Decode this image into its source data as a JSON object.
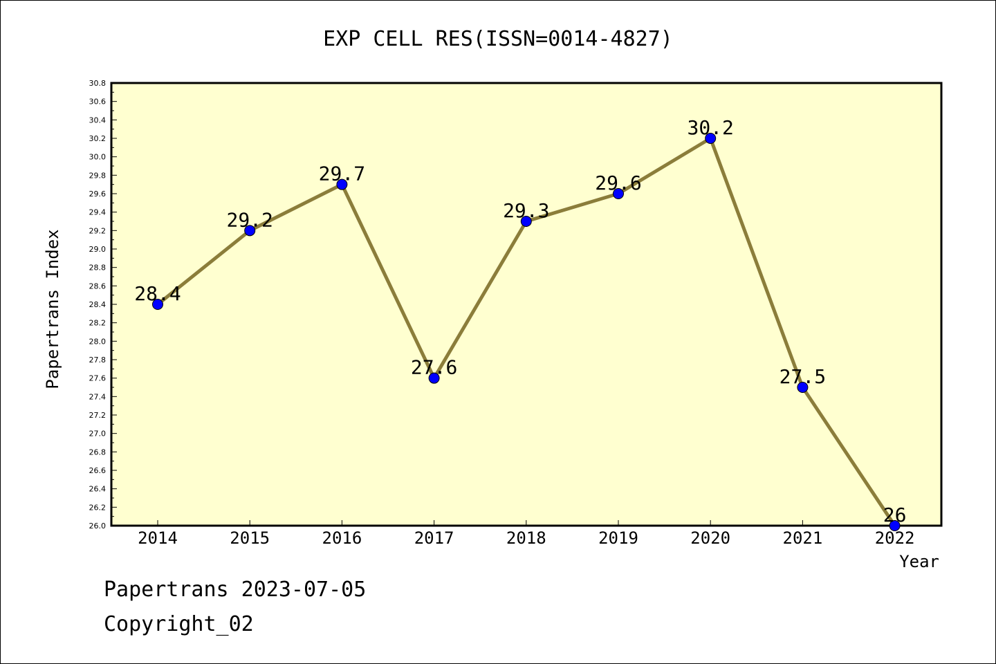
{
  "chart_data": {
    "type": "line",
    "title": "EXP CELL RES(ISSN=0014-4827)",
    "xlabel": "Year",
    "ylabel": "Papertrans Index",
    "categories": [
      "2014",
      "2015",
      "2016",
      "2017",
      "2018",
      "2019",
      "2020",
      "2021",
      "2022"
    ],
    "series": [
      {
        "values": [
          28.4,
          29.2,
          29.7,
          27.6,
          29.3,
          29.6,
          30.2,
          27.5,
          26.0
        ],
        "labels": [
          "28.4",
          "29.2",
          "29.7",
          "27.6",
          "29.3",
          "29.6",
          "30.2",
          "27.5",
          "26"
        ]
      }
    ],
    "ylim": [
      26.0,
      30.8
    ],
    "yticks": [
      "26.0",
      "26.2",
      "26.4",
      "26.6",
      "26.8",
      "27.0",
      "27.2",
      "27.4",
      "27.6",
      "27.8",
      "28.0",
      "28.2",
      "28.4",
      "28.6",
      "28.8",
      "29.0",
      "29.2",
      "29.4",
      "29.6",
      "29.8",
      "30.0",
      "30.2",
      "30.4",
      "30.6",
      "30.8"
    ],
    "grid": false,
    "colors": {
      "plot_background": "#ffffd0",
      "line": "#8b7d3a",
      "marker": "#0000ff"
    }
  },
  "footer": {
    "line1": "Papertrans 2023-07-05",
    "line2": "Copyright_02"
  }
}
